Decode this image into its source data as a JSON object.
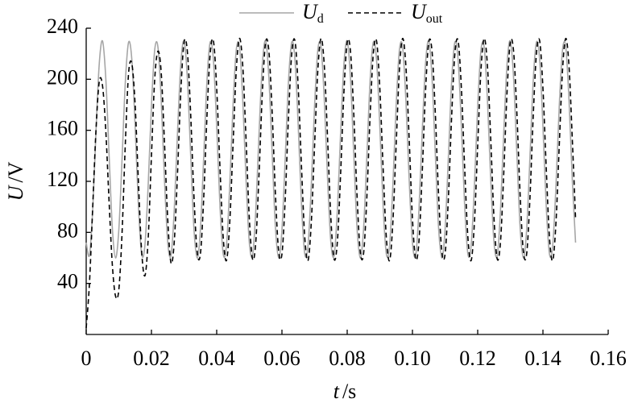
{
  "chart_data": {
    "type": "line",
    "x_label": {
      "symbol": "t",
      "unit": "/s"
    },
    "y_label": {
      "symbol": "U",
      "unit": "/V"
    },
    "xlim": [
      0,
      0.16
    ],
    "xticks": [
      0,
      0.02,
      0.04,
      0.06,
      0.08,
      {
        "value": 0.1,
        "label": "0.10"
      },
      0.12,
      0.14,
      0.16
    ],
    "ylim": [
      0,
      240
    ],
    "yticks": [
      40,
      80,
      120,
      160,
      200,
      240
    ],
    "x": [
      0,
      0.001,
      0.002,
      0.003,
      0.004,
      0.005,
      0.006,
      0.007,
      0.008,
      0.009,
      0.01,
      0.011,
      0.012,
      0.013,
      0.014,
      0.015,
      0.016,
      0.017,
      0.018,
      0.019,
      0.02,
      0.021,
      0.022,
      0.023,
      0.024,
      0.025,
      0.026,
      0.027,
      0.028,
      0.029,
      0.03,
      0.031,
      0.032,
      0.033,
      0.034,
      0.035,
      0.036,
      0.037,
      0.038,
      0.039,
      0.04,
      0.041,
      0.042,
      0.043,
      0.044,
      0.045,
      0.046,
      0.047,
      0.048,
      0.049,
      0.05,
      0.051,
      0.052,
      0.053,
      0.054,
      0.055,
      0.056,
      0.057,
      0.058,
      0.059,
      0.06,
      0.061,
      0.062,
      0.063,
      0.064,
      0.065,
      0.066,
      0.067,
      0.068,
      0.069,
      0.07,
      0.071,
      0.072,
      0.073,
      0.074,
      0.075,
      0.076,
      0.077,
      0.078,
      0.079,
      0.08,
      0.081,
      0.082,
      0.083,
      0.084,
      0.085,
      0.086,
      0.087,
      0.088,
      0.089,
      0.09,
      0.091,
      0.092,
      0.093,
      0.094,
      0.095,
      0.096,
      0.097,
      0.098,
      0.099,
      0.1,
      0.101,
      0.102,
      0.103,
      0.104,
      0.105,
      0.106,
      0.107,
      0.108,
      0.109,
      0.11,
      0.111,
      0.112,
      0.113,
      0.114,
      0.115,
      0.116,
      0.117,
      0.118,
      0.119,
      0.12,
      0.121,
      0.122,
      0.123,
      0.124,
      0.125,
      0.126,
      0.127,
      0.128,
      0.129,
      0.13,
      0.131,
      0.132,
      0.133,
      0.134,
      0.135,
      0.136,
      0.137,
      0.138,
      0.139,
      0.14,
      0.141,
      0.142,
      0.143,
      0.144,
      0.145,
      0.146,
      0.147,
      0.148,
      0.149,
      0.15
    ],
    "series": [
      {
        "name": "Ud",
        "color": "#a6a6a6",
        "dash": false,
        "values": [
          72,
          62,
          98,
          159,
          212,
          230,
          201,
          142,
          84,
          60,
          82,
          138,
          198,
          229,
          215,
          163,
          101,
          63,
          70,
          117,
          179,
          223,
          225,
          183,
          121,
          72,
          62,
          98,
          159,
          212,
          230,
          201,
          142,
          84,
          60,
          82,
          138,
          198,
          229,
          215,
          163,
          101,
          63,
          70,
          117,
          179,
          223,
          225,
          183,
          121,
          72,
          62,
          98,
          159,
          212,
          230,
          201,
          142,
          84,
          60,
          82,
          138,
          198,
          229,
          215,
          163,
          101,
          63,
          70,
          117,
          179,
          223,
          225,
          183,
          121,
          72,
          62,
          98,
          159,
          212,
          230,
          201,
          142,
          84,
          60,
          82,
          138,
          198,
          229,
          215,
          163,
          101,
          63,
          70,
          117,
          179,
          223,
          225,
          183,
          121,
          72,
          62,
          98,
          159,
          212,
          230,
          201,
          142,
          84,
          60,
          82,
          138,
          198,
          229,
          215,
          163,
          101,
          63,
          70,
          117,
          179,
          223,
          225,
          183,
          121,
          72,
          62,
          98,
          159,
          212,
          230,
          201,
          142,
          84,
          60,
          82,
          138,
          198,
          229,
          215,
          163,
          101,
          63,
          70,
          117,
          179,
          223,
          225,
          183,
          121,
          72
        ]
      },
      {
        "name": "Uout",
        "color": "#000000",
        "dash": true,
        "values": [
          5,
          40,
          100,
          160,
          198,
          195,
          160,
          105,
          55,
          30,
          35,
          80,
          150,
          205,
          212,
          180,
          120,
          65,
          46,
          75,
          140,
          200,
          222,
          205,
          150,
          90,
          56,
          73,
          127,
          190,
          229,
          222,
          174,
          110,
          65,
          63,
          106,
          170,
          220,
          230,
          193,
          131,
          76,
          58,
          88,
          148,
          207,
          232,
          210,
          153,
          91,
          59,
          73,
          127,
          190,
          229,
          222,
          174,
          110,
          65,
          63,
          106,
          170,
          220,
          230,
          193,
          131,
          76,
          58,
          88,
          148,
          207,
          232,
          210,
          153,
          91,
          59,
          73,
          127,
          190,
          229,
          222,
          174,
          110,
          65,
          63,
          106,
          170,
          220,
          230,
          193,
          131,
          76,
          58,
          88,
          148,
          207,
          232,
          210,
          153,
          91,
          59,
          73,
          127,
          190,
          229,
          222,
          174,
          110,
          65,
          63,
          106,
          170,
          220,
          230,
          193,
          131,
          76,
          58,
          88,
          148,
          207,
          232,
          210,
          153,
          91,
          59,
          73,
          127,
          190,
          229,
          222,
          174,
          110,
          65,
          63,
          106,
          170,
          220,
          230,
          193,
          131,
          76,
          58,
          88,
          148,
          207,
          232,
          210,
          153,
          91
        ]
      }
    ]
  }
}
